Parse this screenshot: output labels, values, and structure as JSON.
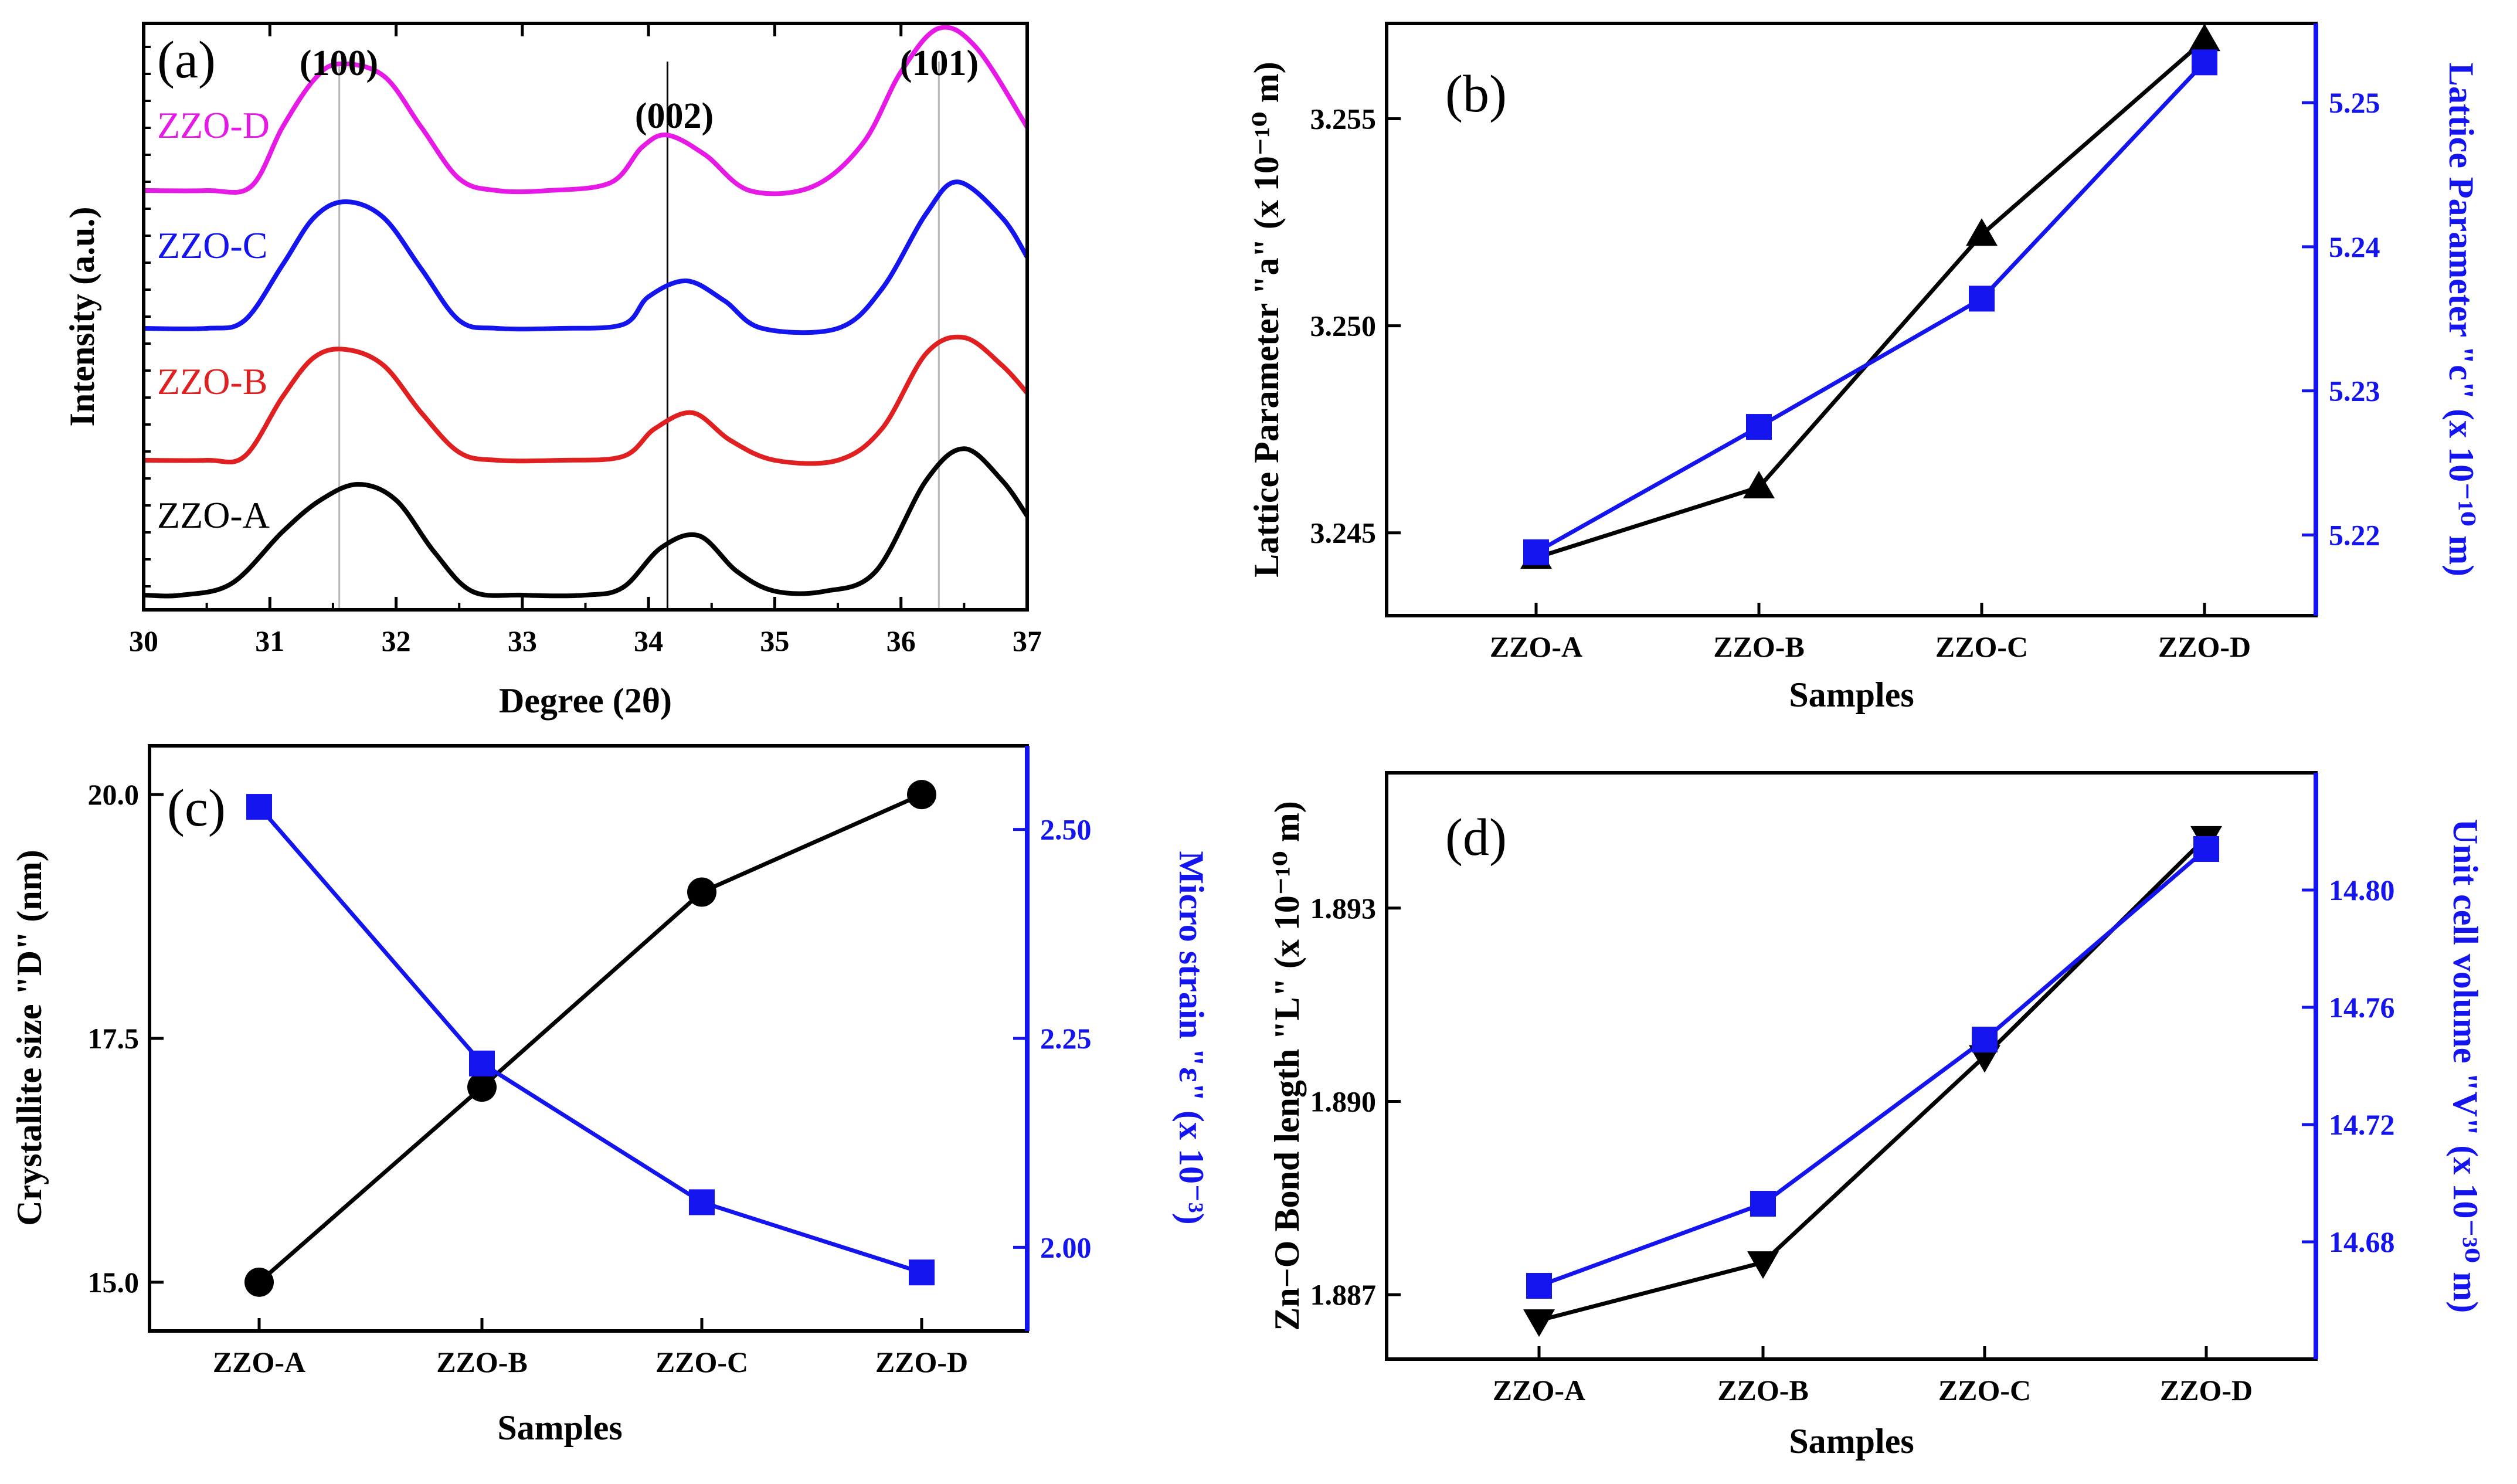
{
  "colors": {
    "black": "#000000",
    "blue": "#1414ee",
    "magenta": "#e619e6",
    "red": "#e02020",
    "gray": "#b8b8b8"
  },
  "chart_data": [
    {
      "id": "a",
      "panel_label": "(a)",
      "type": "line",
      "title": "",
      "xlabel": "Degree (2θ)",
      "ylabel": "Intensity (a.u.)",
      "xlim": [
        30,
        37
      ],
      "xticks": [
        "30",
        "31",
        "32",
        "33",
        "34",
        "35",
        "36",
        "37"
      ],
      "peaks": [
        {
          "label": "(100)",
          "x": 31.55
        },
        {
          "label": "(002)",
          "x": 34.15
        },
        {
          "label": "(101)",
          "x": 36.3
        }
      ],
      "series": [
        {
          "name": "ZZO-A",
          "color": "#000000",
          "x": [
            30.0,
            30.3,
            30.7,
            31.1,
            31.4,
            31.7,
            32.0,
            32.3,
            32.6,
            33.0,
            33.5,
            33.8,
            34.1,
            34.4,
            34.7,
            35.0,
            35.4,
            35.8,
            36.2,
            36.5,
            36.8,
            37.0
          ],
          "y": [
            0.0,
            0.0,
            0.15,
            0.8,
            1.2,
            1.4,
            1.2,
            0.55,
            0.05,
            0.0,
            0.0,
            0.1,
            0.6,
            0.75,
            0.3,
            0.05,
            0.05,
            0.3,
            1.45,
            1.85,
            1.45,
            1.0
          ]
        },
        {
          "name": "ZZO-B",
          "color": "#e02020",
          "x": [
            30.0,
            30.5,
            30.8,
            31.1,
            31.35,
            31.6,
            31.9,
            32.2,
            32.5,
            32.8,
            33.3,
            33.8,
            34.05,
            34.35,
            34.65,
            35.0,
            35.5,
            35.85,
            36.2,
            36.5,
            36.8,
            37.0
          ],
          "y": [
            0.0,
            0.0,
            0.05,
            0.8,
            1.3,
            1.4,
            1.2,
            0.6,
            0.1,
            0.0,
            0.0,
            0.05,
            0.4,
            0.6,
            0.25,
            0.0,
            0.0,
            0.4,
            1.35,
            1.55,
            1.2,
            0.85
          ]
        },
        {
          "name": "ZZO-C",
          "color": "#1414ee",
          "x": [
            30.0,
            30.5,
            30.8,
            31.1,
            31.35,
            31.6,
            31.9,
            32.2,
            32.5,
            32.8,
            33.3,
            33.8,
            34.0,
            34.3,
            34.6,
            34.9,
            35.5,
            35.85,
            36.2,
            36.45,
            36.8,
            37.0
          ],
          "y": [
            0.0,
            0.0,
            0.1,
            0.8,
            1.4,
            1.6,
            1.4,
            0.75,
            0.1,
            0.0,
            0.0,
            0.05,
            0.4,
            0.6,
            0.35,
            0.0,
            0.0,
            0.5,
            1.45,
            1.85,
            1.4,
            0.9
          ]
        },
        {
          "name": "ZZO-D",
          "color": "#e619e6",
          "x": [
            30.0,
            30.5,
            30.85,
            31.1,
            31.35,
            31.55,
            31.9,
            32.2,
            32.5,
            32.8,
            33.2,
            33.7,
            33.95,
            34.15,
            34.45,
            34.8,
            35.3,
            35.7,
            36.0,
            36.3,
            36.6,
            37.0
          ],
          "y": [
            0.0,
            0.0,
            0.05,
            0.8,
            1.4,
            1.6,
            1.45,
            0.8,
            0.15,
            0.0,
            0.0,
            0.1,
            0.55,
            0.7,
            0.45,
            0.0,
            0.05,
            0.6,
            1.5,
            2.05,
            1.8,
            0.8
          ]
        }
      ]
    },
    {
      "id": "b",
      "panel_label": "(b)",
      "type": "line",
      "categories": [
        "ZZO-A",
        "ZZO-B",
        "ZZO-C",
        "ZZO-D"
      ],
      "xlabel": "Samples",
      "ylabel_left": "Lattice Parameter \"a\" (x 10⁻¹⁰ m)",
      "ylabel_right": "Lattice Parameter \"c\" (x 10⁻¹⁰ m)",
      "ylim_left": [
        3.243,
        3.2573
      ],
      "yticks_left": [
        "3.245",
        "3.250",
        "3.255"
      ],
      "ylim_right": [
        5.2144,
        5.2555
      ],
      "yticks_right": [
        "5.22",
        "5.23",
        "5.24",
        "5.25"
      ],
      "series": [
        {
          "name": "a",
          "axis": "left",
          "color": "#000000",
          "marker": "triangle-up",
          "values": [
            3.2444,
            3.2461,
            3.2522,
            3.2569
          ]
        },
        {
          "name": "c",
          "axis": "right",
          "color": "#1414ee",
          "marker": "square",
          "values": [
            5.2188,
            5.2275,
            5.2364,
            5.2528
          ]
        }
      ]
    },
    {
      "id": "c",
      "panel_label": "(c)",
      "type": "line",
      "categories": [
        "ZZO-A",
        "ZZO-B",
        "ZZO-C",
        "ZZO-D"
      ],
      "xlabel": "Samples",
      "ylabel_left": "Crystallite size \"D\" (nm)",
      "ylabel_right": "Micro strain \"ε\" (x 10⁻³)",
      "ylim_left": [
        14.5,
        20.5
      ],
      "yticks_left": [
        "15.0",
        "17.5",
        "20.0"
      ],
      "ylim_right": [
        1.9,
        2.6
      ],
      "yticks_right": [
        "2.00",
        "2.25",
        "2.50"
      ],
      "series": [
        {
          "name": "D",
          "axis": "left",
          "color": "#000000",
          "marker": "circle",
          "values": [
            15.0,
            17.0,
            19.0,
            20.0
          ]
        },
        {
          "name": "ε",
          "axis": "right",
          "color": "#1414ee",
          "marker": "square",
          "values": [
            2.527,
            2.22,
            2.054,
            1.97
          ]
        }
      ]
    },
    {
      "id": "d",
      "panel_label": "(d)",
      "type": "line",
      "categories": [
        "ZZO-A",
        "ZZO-B",
        "ZZO-C",
        "ZZO-D"
      ],
      "xlabel": "Samples",
      "ylabel_left": "Zn−O Bond length \"L\" (x 10⁻¹⁰ m)",
      "ylabel_right": "Unit cell volume \"V\" (x 10⁻³⁰ m)",
      "ylim_left": [
        1.886,
        1.8951
      ],
      "yticks_left": [
        "1.887",
        "1.890",
        "1.893"
      ],
      "ylim_right": [
        14.64,
        14.84
      ],
      "yticks_right": [
        "14.68",
        "14.72",
        "14.76",
        "14.80"
      ],
      "series": [
        {
          "name": "L",
          "axis": "left",
          "color": "#000000",
          "marker": "triangle-down",
          "values": [
            1.8866,
            1.8875,
            1.8907,
            1.8941
          ]
        },
        {
          "name": "V",
          "axis": "right",
          "color": "#1414ee",
          "marker": "square",
          "values": [
            14.665,
            14.693,
            14.749,
            14.814
          ]
        }
      ]
    }
  ]
}
